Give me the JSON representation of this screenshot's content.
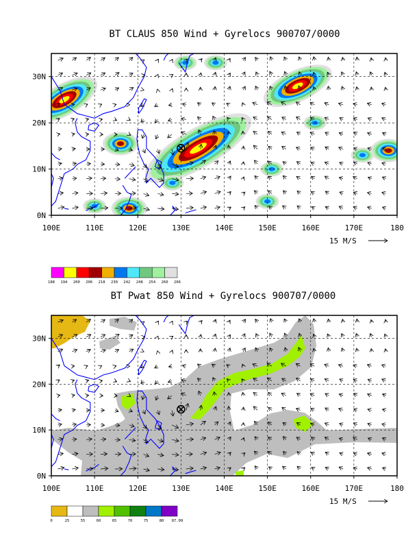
{
  "chart_data": [
    {
      "type": "heatmap",
      "title": "BT CLAUS 850 Wind + Gyrelocs 900707/0000",
      "variable": "CLAUS brightness temperature",
      "xlabel": "",
      "ylabel": "",
      "xlim": [
        100,
        180
      ],
      "ylim": [
        0,
        35
      ],
      "x_ticks": [
        "100E",
        "110E",
        "120E",
        "130E",
        "140E",
        "150E",
        "160E",
        "170E",
        "180"
      ],
      "y_ticks": [
        "0N",
        "10N",
        "20N",
        "30N"
      ],
      "grid": true,
      "vector_scale": "15 M/S",
      "gyre_location": {
        "lon": 130.0,
        "lat": 14.5
      },
      "colorbar": {
        "labels": [
          "188",
          "194",
          "200",
          "206",
          "218",
          "230",
          "242",
          "248",
          "254",
          "260",
          "266"
        ],
        "colors": [
          "#ff00ff",
          "#ffff00",
          "#ff0000",
          "#a00000",
          "#f0b000",
          "#0078f0",
          "#50e8f8",
          "#70c880",
          "#a0f0a0",
          "#e0e0e0"
        ]
      },
      "cloud_systems": [
        {
          "lon": 134,
          "lat": 14.5,
          "intensity": 4
        },
        {
          "lon": 103,
          "lat": 25,
          "intensity": 3
        },
        {
          "lon": 157,
          "lat": 28,
          "intensity": 3
        },
        {
          "lon": 178,
          "lat": 14,
          "intensity": 2
        },
        {
          "lon": 172,
          "lat": 13,
          "intensity": 1
        },
        {
          "lon": 116,
          "lat": 15.5,
          "intensity": 2
        },
        {
          "lon": 118,
          "lat": 1.5,
          "intensity": 2
        },
        {
          "lon": 151,
          "lat": 10,
          "intensity": 1
        },
        {
          "lon": 150,
          "lat": 3,
          "intensity": 1
        },
        {
          "lon": 131,
          "lat": 33,
          "intensity": 1
        },
        {
          "lon": 138,
          "lat": 33,
          "intensity": 1
        },
        {
          "lon": 110,
          "lat": 2,
          "intensity": 1
        },
        {
          "lon": 128,
          "lat": 7,
          "intensity": 1
        },
        {
          "lon": 161,
          "lat": 20,
          "intensity": 1
        }
      ]
    },
    {
      "type": "heatmap",
      "title": "BT Pwat 850 Wind + Gyrelocs 900707/0000",
      "variable": "precipitable water",
      "xlabel": "",
      "ylabel": "",
      "xlim": [
        100,
        180
      ],
      "ylim": [
        0,
        35
      ],
      "x_ticks": [
        "100E",
        "110E",
        "120E",
        "130E",
        "140E",
        "150E",
        "160E",
        "170E",
        "180"
      ],
      "y_ticks": [
        "0N",
        "10N",
        "20N",
        "30N"
      ],
      "grid": true,
      "vector_scale": "15 M/S",
      "gyre_location": {
        "lon": 130.0,
        "lat": 14.5
      },
      "colorbar": {
        "labels": [
          "0",
          "25",
          "55",
          "60",
          "65",
          "70",
          "75",
          "80",
          "87.09"
        ],
        "colors": [
          "#e6b814",
          "#ffffff",
          "#bebebe",
          "#a0f000",
          "#50c000",
          "#108010",
          "#0078c8",
          "#8000c8"
        ]
      },
      "moist_band_regions": [
        {
          "name": "band",
          "level": 55
        },
        {
          "name": "core",
          "level": 60
        },
        {
          "name": "dry-northwest",
          "level": 0
        }
      ]
    }
  ]
}
